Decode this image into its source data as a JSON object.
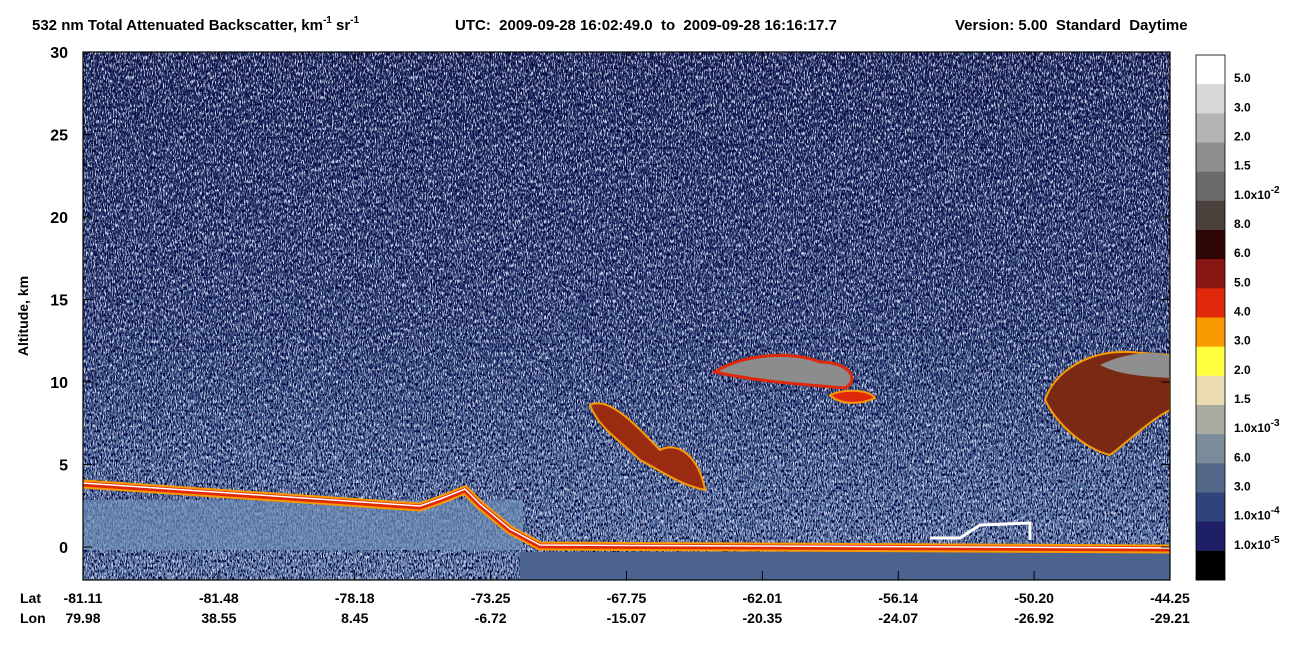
{
  "chart_data": {
    "type": "heatmap",
    "title": {
      "main": "532 nm Total Attenuated Backscatter, km",
      "exp1": "-1",
      "unit2": " sr",
      "exp2": "-1"
    },
    "time_range": "UTC:  2009-09-28 16:02:49.0  to  2009-09-28 16:16:17.7",
    "version": "Version: 5.00  Standard  Daytime",
    "y_label": "Altitude, km",
    "ylim": [
      -2,
      30
    ],
    "yticks": [
      0,
      5,
      10,
      15,
      20,
      25,
      30
    ],
    "x_row_labels": [
      "Lat",
      "Lon"
    ],
    "lat": [
      "-81.11",
      "-81.48",
      "-78.18",
      "-73.25",
      "-67.75",
      "-62.01",
      "-56.14",
      "-50.20",
      "-44.25"
    ],
    "lon": [
      "79.98",
      "38.55",
      "8.45",
      "-6.72",
      "-15.07",
      "-20.35",
      "-24.07",
      "-26.92",
      "-29.21"
    ],
    "colorbar": {
      "colors": [
        "#ffffff",
        "#d8d8d8",
        "#b4b4b4",
        "#8e8e8e",
        "#6a6a6a",
        "#4a403c",
        "#2e0606",
        "#881612",
        "#e0280a",
        "#f89a00",
        "#ffff40",
        "#eadcb0",
        "#a8aba0",
        "#7c8b9a",
        "#54698a",
        "#2f447a",
        "#1f1f68",
        "#000000"
      ],
      "labels": [
        {
          "text": "5.0"
        },
        {
          "text": "3.0"
        },
        {
          "text": "2.0"
        },
        {
          "text": "1.5"
        },
        {
          "text": "1.0x10",
          "exp": "-2"
        },
        {
          "text": "8.0"
        },
        {
          "text": "6.0"
        },
        {
          "text": "5.0"
        },
        {
          "text": "4.0"
        },
        {
          "text": "3.0"
        },
        {
          "text": "2.0"
        },
        {
          "text": "1.5"
        },
        {
          "text": "1.0x10",
          "exp": "-3"
        },
        {
          "text": "6.0"
        },
        {
          "text": "3.0"
        },
        {
          "text": "1.0x10",
          "exp": "-4"
        },
        {
          "text": "1.0x10",
          "exp": "-5"
        }
      ]
    }
  }
}
